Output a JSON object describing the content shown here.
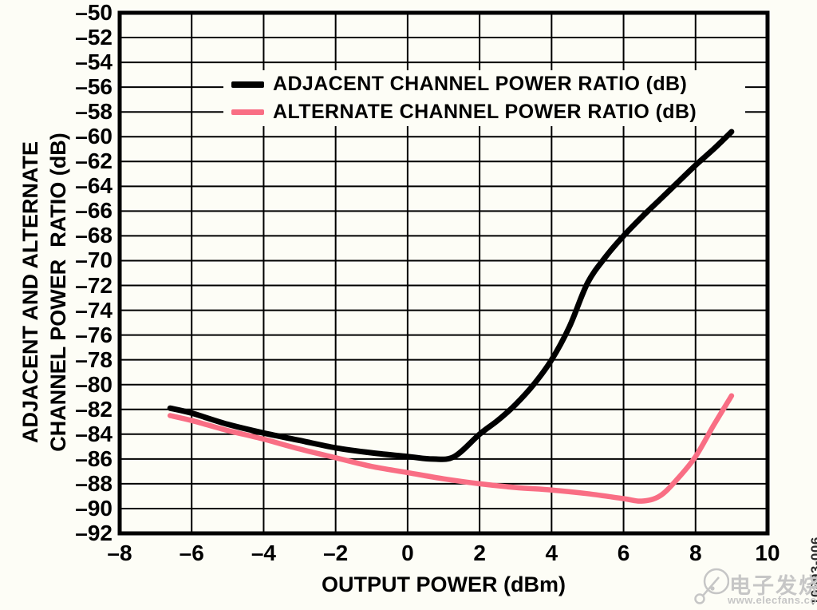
{
  "figure_code": "10893-006",
  "watermark": {
    "brand_cn": "电子发烧友",
    "url": "www.elecfans.com",
    "color": "#c6c6c6"
  },
  "colors": {
    "background": "#fdfdf6",
    "grid": "#000000",
    "frame": "#000000",
    "adjacent_series": "#000000",
    "alternate_series": "#f96e84"
  },
  "chart_data": {
    "type": "line",
    "title": "",
    "xlabel": "OUTPUT POWER (dBm)",
    "ylabel_lines": [
      "ADJACENT AND ALTERNATE",
      "CHANNEL POWER  RATIO (dB)"
    ],
    "xlim": [
      -8,
      10
    ],
    "ylim": [
      -92,
      -50
    ],
    "grid": true,
    "x_ticks": [
      -8,
      -6,
      -4,
      -2,
      0,
      2,
      4,
      6,
      8,
      10
    ],
    "x_tick_labels": [
      "–8",
      "–6",
      "–4",
      "–2",
      "0",
      "2",
      "4",
      "6",
      "8",
      "10"
    ],
    "y_ticks": [
      -50,
      -52,
      -54,
      -56,
      -58,
      -60,
      -62,
      -64,
      -66,
      -68,
      -70,
      -72,
      -74,
      -76,
      -78,
      -80,
      -82,
      -84,
      -86,
      -88,
      -90,
      -92
    ],
    "y_tick_labels": [
      "–50",
      "–52",
      "–54",
      "–56",
      "–58",
      "–60",
      "–62",
      "–64",
      "–66",
      "–68",
      "–70",
      "–72",
      "–74",
      "–76",
      "–78",
      "–80",
      "–82",
      "–84",
      "–86",
      "–88",
      "–90",
      "–92"
    ],
    "legend": {
      "position": "top-center"
    },
    "series": [
      {
        "name": "ADJACENT CHANNEL POWER RATIO (dB)",
        "color": "#000000",
        "stroke_width": 7,
        "points": [
          [
            -6.6,
            -81.9
          ],
          [
            -6,
            -82.3
          ],
          [
            -5,
            -83.2
          ],
          [
            -4,
            -83.9
          ],
          [
            -3,
            -84.5
          ],
          [
            -2,
            -85.1
          ],
          [
            -1,
            -85.5
          ],
          [
            0,
            -85.8
          ],
          [
            0.7,
            -86.0
          ],
          [
            1.3,
            -85.8
          ],
          [
            2,
            -84.0
          ],
          [
            2.5,
            -82.9
          ],
          [
            3,
            -81.6
          ],
          [
            3.5,
            -80.0
          ],
          [
            4,
            -78.0
          ],
          [
            4.5,
            -75.3
          ],
          [
            5,
            -71.8
          ],
          [
            5.5,
            -69.7
          ],
          [
            6,
            -68.0
          ],
          [
            6.5,
            -66.5
          ],
          [
            7,
            -65.1
          ],
          [
            7.5,
            -63.7
          ],
          [
            8,
            -62.3
          ],
          [
            8.5,
            -61.0
          ],
          [
            9,
            -59.6
          ]
        ]
      },
      {
        "name": "ALTERNATE CHANNEL POWER RATIO (dB)",
        "color": "#f96e84",
        "stroke_width": 6.5,
        "points": [
          [
            -6.6,
            -82.5
          ],
          [
            -6,
            -82.9
          ],
          [
            -5,
            -83.7
          ],
          [
            -4,
            -84.4
          ],
          [
            -3,
            -85.2
          ],
          [
            -2,
            -85.9
          ],
          [
            -1,
            -86.6
          ],
          [
            0,
            -87.1
          ],
          [
            1,
            -87.6
          ],
          [
            2,
            -88.0
          ],
          [
            3,
            -88.3
          ],
          [
            4,
            -88.5
          ],
          [
            5,
            -88.8
          ],
          [
            6,
            -89.2
          ],
          [
            6.5,
            -89.4
          ],
          [
            7,
            -89.0
          ],
          [
            7.5,
            -87.6
          ],
          [
            8,
            -85.8
          ],
          [
            8.5,
            -83.3
          ],
          [
            9,
            -80.9
          ]
        ]
      }
    ]
  }
}
